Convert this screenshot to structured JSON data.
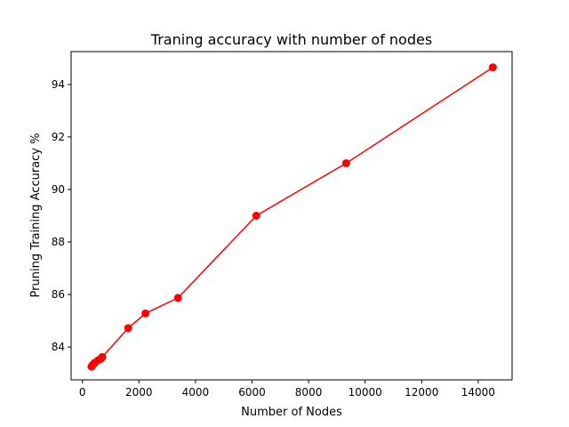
{
  "chart_data": {
    "type": "line",
    "title": "Traning accuracy with number of nodes",
    "xlabel": "Number of Nodes",
    "ylabel": "Pruning Training Accuracy %",
    "xlim": [
      -400,
      15200
    ],
    "ylim": [
      82.75,
      95.25
    ],
    "x_ticks": [
      0,
      2000,
      4000,
      6000,
      8000,
      10000,
      12000,
      14000
    ],
    "y_ticks": [
      84,
      86,
      88,
      90,
      92,
      94
    ],
    "grid": false,
    "series": [
      {
        "color": "#ff0000",
        "marker": "circle",
        "x": [
          320,
          350,
          390,
          440,
          560,
          650,
          700,
          1620,
          2230,
          3380,
          6150,
          9330,
          14520
        ],
        "y": [
          83.25,
          83.3,
          83.35,
          83.4,
          83.5,
          83.55,
          83.62,
          84.72,
          85.28,
          85.87,
          89.0,
          91.0,
          94.65
        ]
      }
    ]
  }
}
